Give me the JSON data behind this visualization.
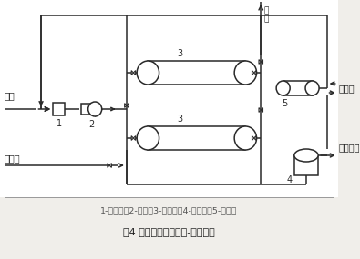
{
  "bg_color": "#f0eeea",
  "diagram_bg": "#ffffff",
  "line_color": "#2a2a2a",
  "dash_color": "#444444",
  "text_color": "#333333",
  "legend_text": "1-过滤器；2-风机；3-吸附器；4-分离器；5-冷凝器",
  "caption_text": "图4 固定床活性炭吸附-回流流程",
  "label_waste_gas": "废气",
  "label_steam": "水蒸气",
  "label_exhaust": "排\n气",
  "label_cool_water": "冷却水",
  "label_solvent": "溶剂回收",
  "num1": "1",
  "num2": "2",
  "num3": "3",
  "num4": "4",
  "num5": "5"
}
